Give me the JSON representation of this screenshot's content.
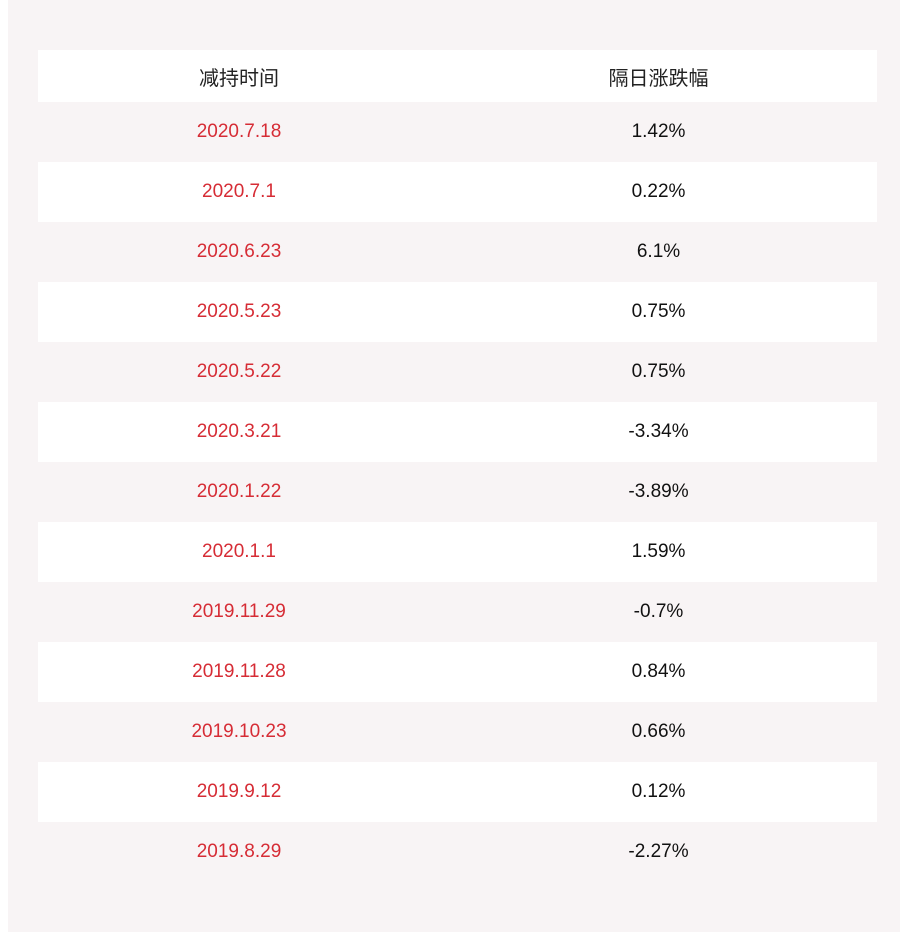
{
  "table": {
    "headers": [
      "减持时间",
      "隔日涨跌幅"
    ],
    "rows": [
      {
        "date": "2020.7.18",
        "change": "1.42%"
      },
      {
        "date": "2020.7.1",
        "change": "0.22%"
      },
      {
        "date": "2020.6.23",
        "change": "6.1%"
      },
      {
        "date": "2020.5.23",
        "change": "0.75%"
      },
      {
        "date": "2020.5.22",
        "change": "0.75%"
      },
      {
        "date": "2020.3.21",
        "change": "-3.34%"
      },
      {
        "date": "2020.1.22",
        "change": "-3.89%"
      },
      {
        "date": "2020.1.1",
        "change": "1.59%"
      },
      {
        "date": "2019.11.29",
        "change": "-0.7%"
      },
      {
        "date": "2019.11.28",
        "change": "0.84%"
      },
      {
        "date": "2019.10.23",
        "change": "0.66%"
      },
      {
        "date": "2019.9.12",
        "change": "0.12%"
      },
      {
        "date": "2019.8.29",
        "change": "-2.27%"
      }
    ]
  },
  "colors": {
    "date_text": "#d62c35",
    "value_text": "#111111",
    "background": "#f8f4f5",
    "stripe": "#ffffff"
  }
}
